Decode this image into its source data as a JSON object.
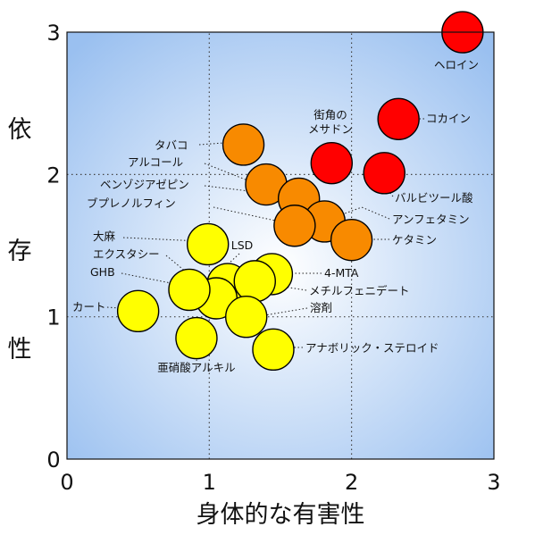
{
  "chart_data": {
    "type": "scatter",
    "title": "",
    "xlabel": "身体的な有害性",
    "ylabel_chars": [
      "依",
      "存",
      "性"
    ],
    "xlim": [
      0,
      3
    ],
    "ylim": [
      0,
      3
    ],
    "xticks": [
      "0",
      "1",
      "2",
      "3"
    ],
    "yticks": [
      "0",
      "1",
      "2",
      "3"
    ],
    "grid": "dotted at x=1, x=2, y=1, y=2",
    "colors": {
      "red": "#ff0000",
      "orange": "#f88a00",
      "yellow": "#ffff00",
      "bg_edge": "#9ac0f0",
      "bg_center": "#ffffff"
    },
    "points": [
      {
        "label": "ヘロイン",
        "x": 2.78,
        "y": 3.0,
        "color": "red"
      },
      {
        "label": "コカイン",
        "x": 2.33,
        "y": 2.39,
        "color": "red"
      },
      {
        "label": "街角の\nメサドン",
        "x": 1.86,
        "y": 2.08,
        "color": "red"
      },
      {
        "label": "バルビツール酸",
        "x": 2.23,
        "y": 2.01,
        "color": "red"
      },
      {
        "label": "タバコ",
        "x": 1.24,
        "y": 2.21,
        "color": "orange"
      },
      {
        "label": "アルコール",
        "x": 1.4,
        "y": 1.93,
        "color": "orange"
      },
      {
        "label": "ベンゾジアゼピン",
        "x": 1.63,
        "y": 1.83,
        "color": "orange"
      },
      {
        "label": "アンフェタミン",
        "x": 1.81,
        "y": 1.67,
        "color": "orange"
      },
      {
        "label": "ブプレノルフィン",
        "x": 1.6,
        "y": 1.64,
        "color": "orange"
      },
      {
        "label": "ケタミン",
        "x": 2.0,
        "y": 1.54,
        "color": "orange"
      },
      {
        "label": "大麻",
        "x": 0.99,
        "y": 1.51,
        "color": "yellow"
      },
      {
        "label": "LSD",
        "x": 1.13,
        "y": 1.23,
        "color": "yellow"
      },
      {
        "label": "エクスタシー",
        "x": 1.05,
        "y": 1.13,
        "color": "yellow"
      },
      {
        "label": "GHB",
        "x": 0.86,
        "y": 1.19,
        "color": "yellow"
      },
      {
        "label": "4-MTA",
        "x": 1.44,
        "y": 1.3,
        "color": "yellow"
      },
      {
        "label": "メチルフェニデート",
        "x": 1.32,
        "y": 1.25,
        "color": "yellow"
      },
      {
        "label": "溶剤",
        "x": 1.26,
        "y": 1.0,
        "color": "yellow"
      },
      {
        "label": "カート",
        "x": 0.5,
        "y": 1.04,
        "color": "yellow"
      },
      {
        "label": "亜硝酸アルキル",
        "x": 0.91,
        "y": 0.85,
        "color": "yellow"
      },
      {
        "label": "アナボリック・ステロイド",
        "x": 1.45,
        "y": 0.77,
        "color": "yellow"
      }
    ]
  }
}
